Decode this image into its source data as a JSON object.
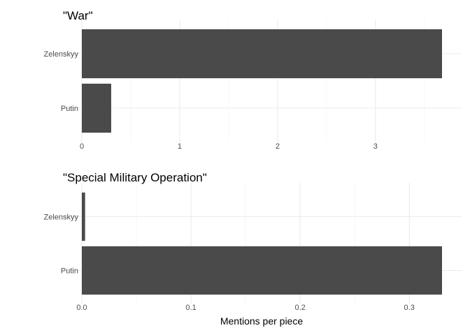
{
  "chart_data": [
    {
      "type": "bar",
      "orientation": "horizontal",
      "title": "\"War\"",
      "categories": [
        "Zelenskyy",
        "Putin"
      ],
      "values": [
        3.68,
        0.3
      ],
      "xlim": [
        0,
        3.68
      ],
      "xticks": [
        0,
        1,
        2,
        3
      ],
      "xtick_labels": [
        "0",
        "1",
        "2",
        "3"
      ],
      "xlabel": "",
      "ylabel": "",
      "grid": true,
      "bar_color": "#4a4a4a"
    },
    {
      "type": "bar",
      "orientation": "horizontal",
      "title": "\"Special Military Operation\"",
      "categories": [
        "Zelenskyy",
        "Putin"
      ],
      "values": [
        0.003,
        0.33
      ],
      "xlim": [
        0,
        0.33
      ],
      "xticks": [
        0,
        0.1,
        0.2,
        0.3
      ],
      "xtick_labels": [
        "0.0",
        "0.1",
        "0.2",
        "0.3"
      ],
      "xlabel": "Mentions per piece",
      "ylabel": "",
      "grid": true,
      "bar_color": "#4a4a4a"
    }
  ]
}
